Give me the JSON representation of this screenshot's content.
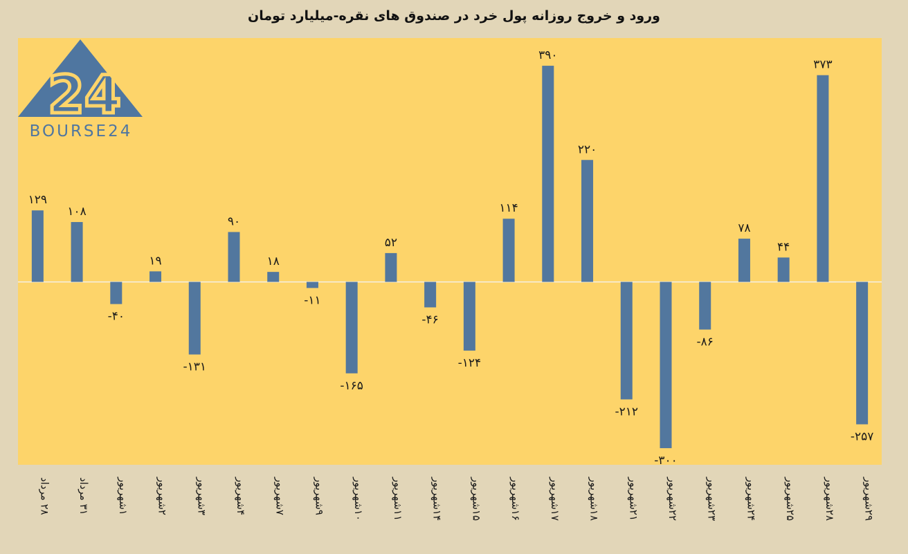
{
  "chart_data": {
    "type": "bar",
    "title": "ورود و خروج روزانه پول خرد در صندوق های نقره-میلیارد تومان",
    "categories": [
      "۲۸ مرداد",
      "۳۱ مرداد",
      "۱شهریور",
      "۲شهریور",
      "۳شهریور",
      "۴شهریور",
      "۷شهریور",
      "۹شهریور",
      "۱۰شهریور",
      "۱۱شهریور",
      "۱۴شهریور",
      "۱۵شهریور",
      "۱۶شهریور",
      "۱۷شهریور",
      "۱۸شهریور",
      "۲۱شهریور",
      "۲۲شهریور",
      "۲۳شهریور",
      "۲۴شهریور",
      "۲۵شهریور",
      "۲۸شهریور",
      "۲۹شهریور"
    ],
    "values": [
      129,
      108,
      -40,
      19,
      -131,
      90,
      18,
      -11,
      -165,
      52,
      -46,
      -124,
      114,
      390,
      220,
      -212,
      -300,
      -86,
      78,
      44,
      373,
      -257
    ],
    "data_labels": [
      "۱۲۹",
      "۱۰۸",
      "-۴۰",
      "۱۹",
      "-۱۳۱",
      "۹۰",
      "۱۸",
      "-۱۱",
      "-۱۶۵",
      "۵۲",
      "-۴۶",
      "-۱۲۴",
      "۱۱۴",
      "۳۹۰",
      "۲۲۰",
      "-۲۱۲",
      "-۳۰۰",
      "-۸۶",
      "۷۸",
      "۴۴",
      "۳۷۳",
      "-۲۵۷"
    ],
    "ylim": [
      -330,
      440
    ],
    "bar_color": "#52779e",
    "plot_background": "#fdd46a",
    "page_background": "#e2d6b8",
    "grid": false,
    "legend": "none"
  },
  "logo": {
    "mark": "24",
    "text": "BOURSE24",
    "color": "#4f76a0"
  }
}
